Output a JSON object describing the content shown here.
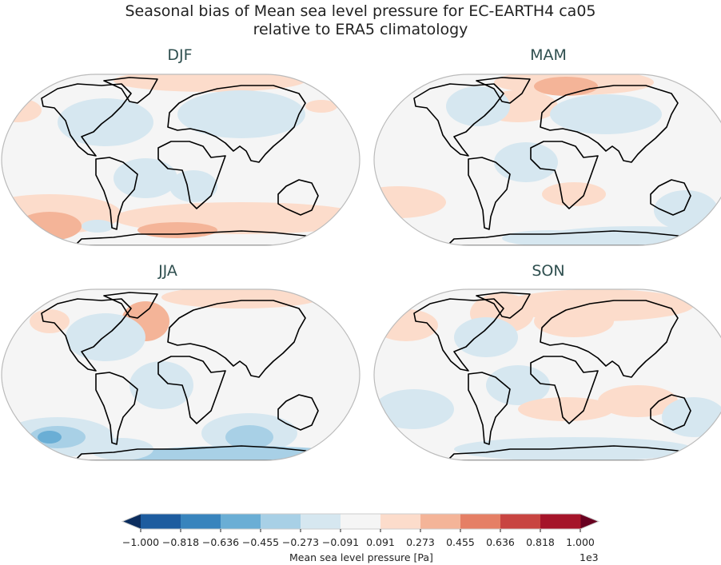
{
  "figure": {
    "title_line1": "Seasonal bias of Mean sea level pressure for EC-EARTH4 ca05",
    "title_line2": "relative to ERA5 climatology"
  },
  "panels": [
    {
      "title": "DJF"
    },
    {
      "title": "MAM"
    },
    {
      "title": "JJA"
    },
    {
      "title": "SON"
    }
  ],
  "chart_data": {
    "type": "heatmap",
    "projection": "Robinson",
    "colorbar": {
      "label": "Mean sea level pressure [Pa]",
      "exponent": "1e3",
      "ticks": [
        "−1.000",
        "−0.818",
        "−0.636",
        "−0.455",
        "−0.273",
        "−0.091",
        "0.091",
        "0.273",
        "0.455",
        "0.636",
        "0.818",
        "1.000"
      ],
      "colors": [
        "#1d5c9f",
        "#3884bd",
        "#6aaed5",
        "#a8d0e6",
        "#d6e7f0",
        "#f5f5f5",
        "#fcdccb",
        "#f4b498",
        "#e57f65",
        "#c84441",
        "#a51429"
      ],
      "under_color": "#0b2d5e",
      "over_color": "#680020",
      "extend": "both"
    }
  }
}
